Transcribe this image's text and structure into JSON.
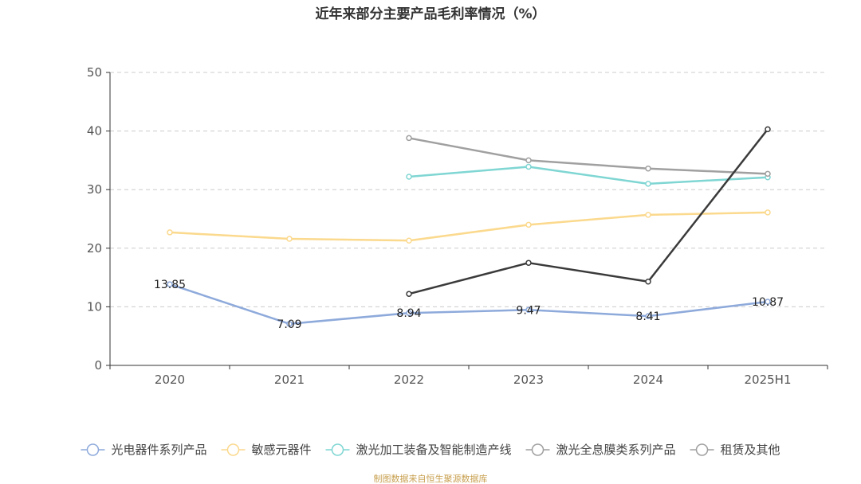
{
  "chart_data": {
    "type": "line",
    "title": "近年来部分主要产品毛利率情况（%）",
    "categories": [
      "2020",
      "2021",
      "2022",
      "2023",
      "2024",
      "2025H1"
    ],
    "ylim": [
      0,
      50
    ],
    "yticks": [
      0,
      10,
      20,
      30,
      40,
      50
    ],
    "grid": true,
    "legend_position": "bottom",
    "series": [
      {
        "name": "光电器件系列产品",
        "color": "#8eaadb",
        "values": [
          13.85,
          7.09,
          8.94,
          9.47,
          8.41,
          10.87
        ],
        "show_labels": true
      },
      {
        "name": "敏感元器件",
        "color": "#fbd98d",
        "values": [
          22.7,
          21.6,
          21.3,
          24.0,
          25.7,
          26.1
        ],
        "show_labels": false
      },
      {
        "name": "激光加工装备及智能制造产线",
        "color": "#7fd6d3",
        "values": [
          null,
          null,
          32.2,
          33.9,
          31.0,
          32.1
        ],
        "show_labels": false
      },
      {
        "name": "激光全息膜类系列产品",
        "color": "#a0a0a0",
        "values": [
          null,
          null,
          38.8,
          35.0,
          33.6,
          32.7
        ],
        "show_labels": false
      },
      {
        "name": "租赁及其他",
        "color": "#3a3a3a",
        "legend_color": "#a0a0a0",
        "values": [
          null,
          null,
          12.2,
          17.5,
          14.3,
          40.3
        ],
        "show_labels": false
      }
    ]
  },
  "footer": "制图数据来自恒生聚源数据库"
}
